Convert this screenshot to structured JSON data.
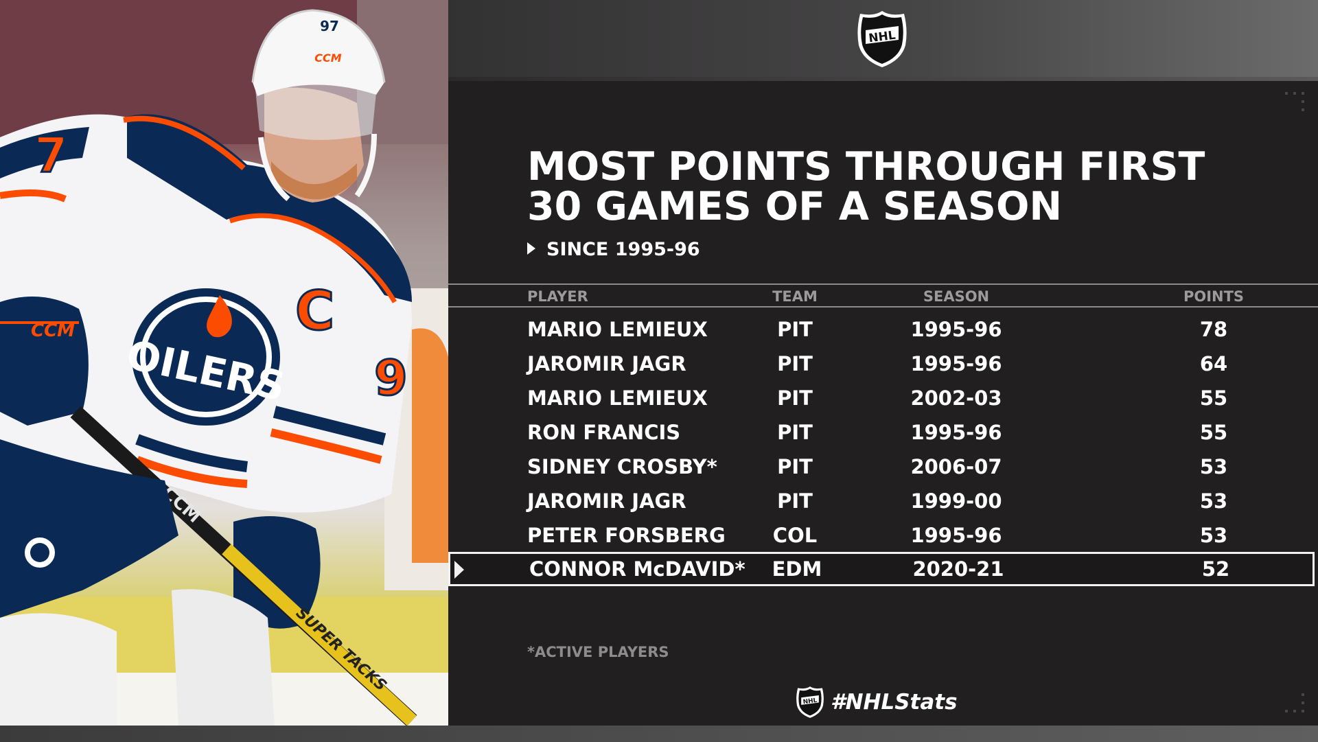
{
  "header": {
    "league_logo": "nhl-shield-icon",
    "title_line1": "MOST POINTS THROUGH FIRST",
    "title_line2": "30 GAMES OF A SEASON",
    "subtitle": "SINCE 1995-96"
  },
  "table": {
    "columns": {
      "player": "PLAYER",
      "team": "TEAM",
      "season": "SEASON",
      "points": "POINTS"
    },
    "rows": [
      {
        "player": "MARIO LEMIEUX",
        "team": "PIT",
        "season": "1995-96",
        "points": "78"
      },
      {
        "player": "JAROMIR JAGR",
        "team": "PIT",
        "season": "1995-96",
        "points": "64"
      },
      {
        "player": "MARIO LEMIEUX",
        "team": "PIT",
        "season": "2002-03",
        "points": "55"
      },
      {
        "player": "RON FRANCIS",
        "team": "PIT",
        "season": "1995-96",
        "points": "55"
      },
      {
        "player": "SIDNEY CROSBY*",
        "team": "PIT",
        "season": "2006-07",
        "points": "53"
      },
      {
        "player": "JAROMIR JAGR",
        "team": "PIT",
        "season": "1999-00",
        "points": "53"
      },
      {
        "player": "PETER FORSBERG",
        "team": "COL",
        "season": "1995-96",
        "points": "53"
      },
      {
        "player": "CONNOR McDAVID*",
        "team": "EDM",
        "season": "2020-21",
        "points": "52",
        "highlighted": true
      }
    ]
  },
  "footnote": "*ACTIVE PLAYERS",
  "hashtag": "#NHLStats",
  "photo": {
    "helmet_number": "97",
    "jersey_crest": "OILERS",
    "captain_letter": "C",
    "sleeve_number": "7",
    "shoulder_number": "9",
    "helmet_brand": "CCM",
    "stick_brand": "CCM",
    "stick_model": "SUPER TACKS"
  },
  "colors": {
    "panel": "#211f20",
    "text": "#ffffff",
    "muted": "#9c9a9b",
    "oilers_navy": "#041e42",
    "oilers_orange": "#fc4c02"
  }
}
